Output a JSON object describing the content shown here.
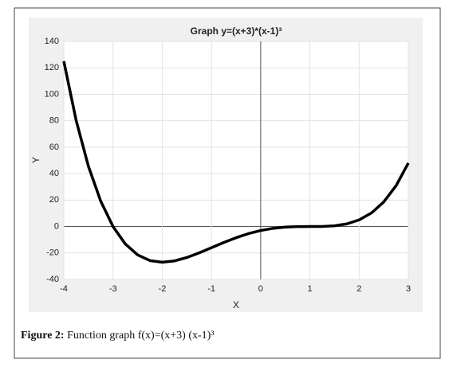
{
  "chart_data": {
    "type": "line",
    "title": "Graph y=(x+3)*(x-1)³",
    "x_label": "X",
    "y_label": "Y",
    "x": [
      -4,
      -3.75,
      -3.5,
      -3.25,
      -3,
      -2.75,
      -2.5,
      -2.25,
      -2,
      -1.75,
      -1.5,
      -1.25,
      -1,
      -0.75,
      -0.5,
      -0.25,
      0,
      0.25,
      0.5,
      0.75,
      1,
      1.25,
      1.5,
      1.75,
      2,
      2.25,
      2.5,
      2.75,
      3
    ],
    "series": [
      {
        "color": "#000000",
        "values": [
          125,
          80.38,
          45.56,
          19.19,
          0,
          -13.18,
          -21.44,
          -25.75,
          -27,
          -26.0,
          -23.44,
          -19.93,
          -16,
          -12.06,
          -8.44,
          -5.37,
          -3,
          -1.37,
          -0.44,
          -0.06,
          0,
          0.07,
          0.56,
          2.0,
          5,
          10.25,
          18.56,
          30.82,
          48
        ]
      }
    ],
    "xlim": [
      -4,
      3
    ],
    "ylim": [
      -40,
      140
    ],
    "xticks": [
      -4,
      -3,
      -2,
      -1,
      0,
      1,
      2,
      3
    ],
    "yticks": [
      -40,
      -20,
      0,
      20,
      40,
      60,
      80,
      100,
      120,
      140
    ],
    "grid": true
  },
  "caption": {
    "label": "Figure 2:",
    "text": "Function graph f(x)=(x+3) (x-1)³"
  }
}
